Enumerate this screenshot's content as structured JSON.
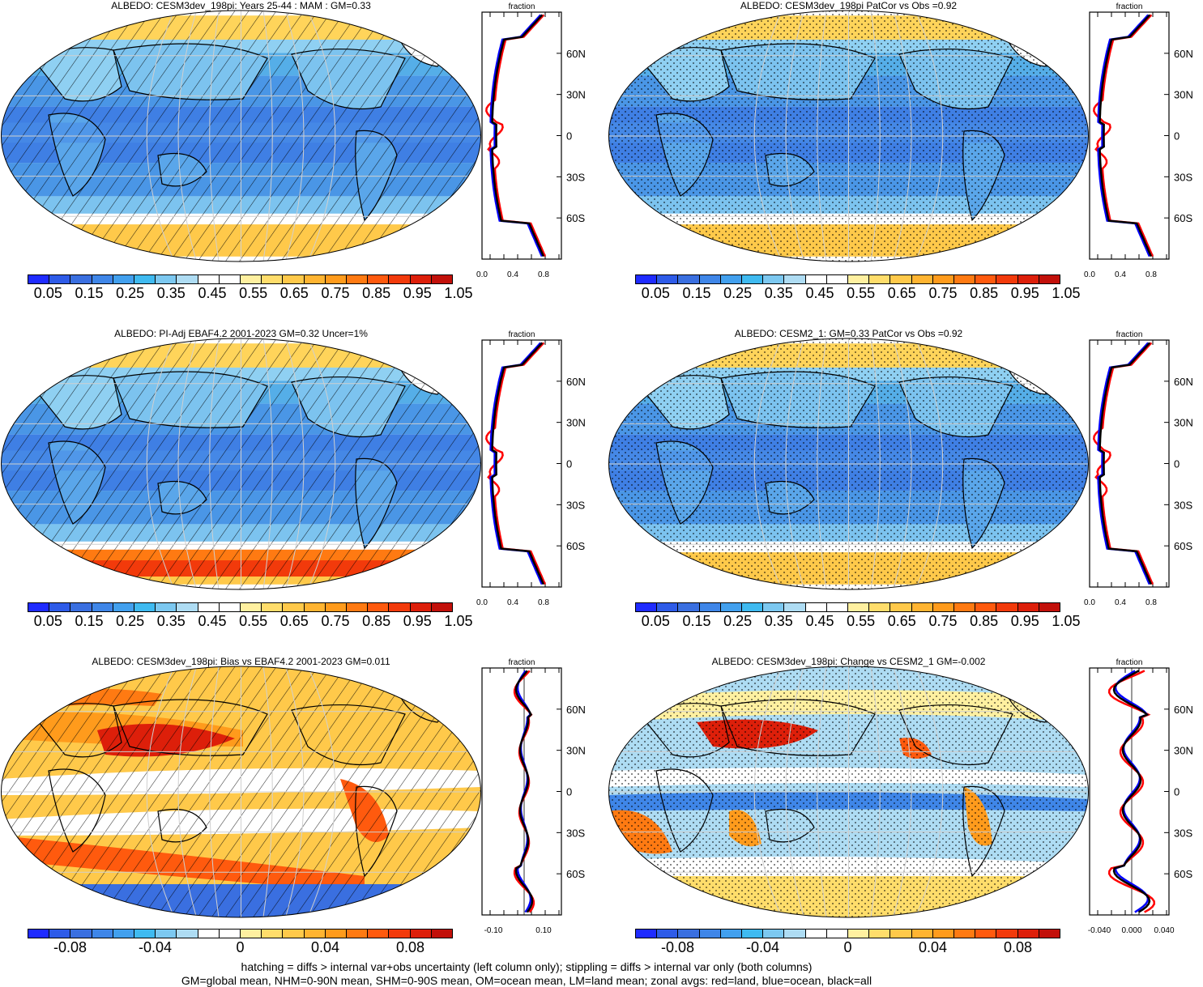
{
  "panels": [
    {
      "id": "p1",
      "title": "ALBEDO: CESM3dev_198pi: Years 25-44 : MAM : GM=0.33",
      "mode": "abs",
      "overlay": "hatch"
    },
    {
      "id": "p2",
      "title": "ALBEDO: CESM3dev_198pi PatCor vs Obs =0.92",
      "mode": "abs",
      "overlay": "stipple"
    },
    {
      "id": "p3",
      "title": "ALBEDO: PI-Adj EBAF4.2 2001-2023 GM=0.32 Uncer=1%",
      "mode": "abs",
      "overlay": "hatch"
    },
    {
      "id": "p4",
      "title": "ALBEDO: CESM2_1: GM=0.33 PatCor vs Obs =0.92",
      "mode": "abs",
      "overlay": "stipple"
    },
    {
      "id": "p5",
      "title": "ALBEDO: CESM3dev_198pi: Bias vs EBAF4.2 2001-2023 GM=0.011",
      "mode": "diff",
      "overlay": "hatch"
    },
    {
      "id": "p6",
      "title": "ALBEDO: CESM3dev_198pi: Change vs CESM2_1 GM=-0.002",
      "mode": "diff",
      "overlay": "stipple"
    }
  ],
  "colorbars": {
    "abs": {
      "labels": [
        "0.05",
        "0.15",
        "0.25",
        "0.35",
        "0.45",
        "0.55",
        "0.65",
        "0.75",
        "0.85",
        "0.95",
        "1.05"
      ],
      "colors": [
        "#1f2bff",
        "#2e5be8",
        "#3a6fe0",
        "#3f86e8",
        "#42a0ee",
        "#3fbaf0",
        "#7cc8f0",
        "#aedcf3",
        "#ffffff",
        "#ffffff",
        "#fff0a0",
        "#ffdd6b",
        "#ffc94a",
        "#ffb431",
        "#ff9b1c",
        "#ff7a12",
        "#ff5a0e",
        "#f23a0b",
        "#dd1f0a",
        "#c2100a"
      ]
    },
    "diff": {
      "labels": [
        "-0.08",
        "-0.04",
        "0",
        "0.04",
        "0.08"
      ],
      "colors": [
        "#1f2bff",
        "#2e5be8",
        "#3a6fe0",
        "#3f86e8",
        "#42a0ee",
        "#3fbaf0",
        "#7cc8f0",
        "#aedcf3",
        "#ffffff",
        "#ffffff",
        "#fff0a0",
        "#ffdd6b",
        "#ffc94a",
        "#ffb431",
        "#ff9b1c",
        "#ff7a12",
        "#ff5a0e",
        "#f23a0b",
        "#dd1f0a",
        "#c2100a"
      ]
    }
  },
  "zonal": {
    "header": "fraction",
    "lat_ticks": [
      "60N",
      "30N",
      "0",
      "30S",
      "60S"
    ],
    "abs_x_ticks": [
      "0.0",
      "0.4",
      "0.8"
    ],
    "diff_x_ticks_left": [
      "-0.10",
      "0.10"
    ],
    "diff_x_ticks_right": [
      "-0.040",
      "0.000",
      "0.040"
    ],
    "legend_colors": {
      "land": "#ff0000",
      "ocean": "#0000ff",
      "all": "#000000"
    }
  },
  "footer": {
    "line1": "hatching = diffs > internal var+obs uncertainty (left column only); stippling = diffs > internal var only (both columns)",
    "line2": "GM=global mean, NHM=0-90N mean, SHM=0-90S mean, OM=ocean mean, LM=land mean; zonal avgs: red=land, blue=ocean, black=all"
  }
}
